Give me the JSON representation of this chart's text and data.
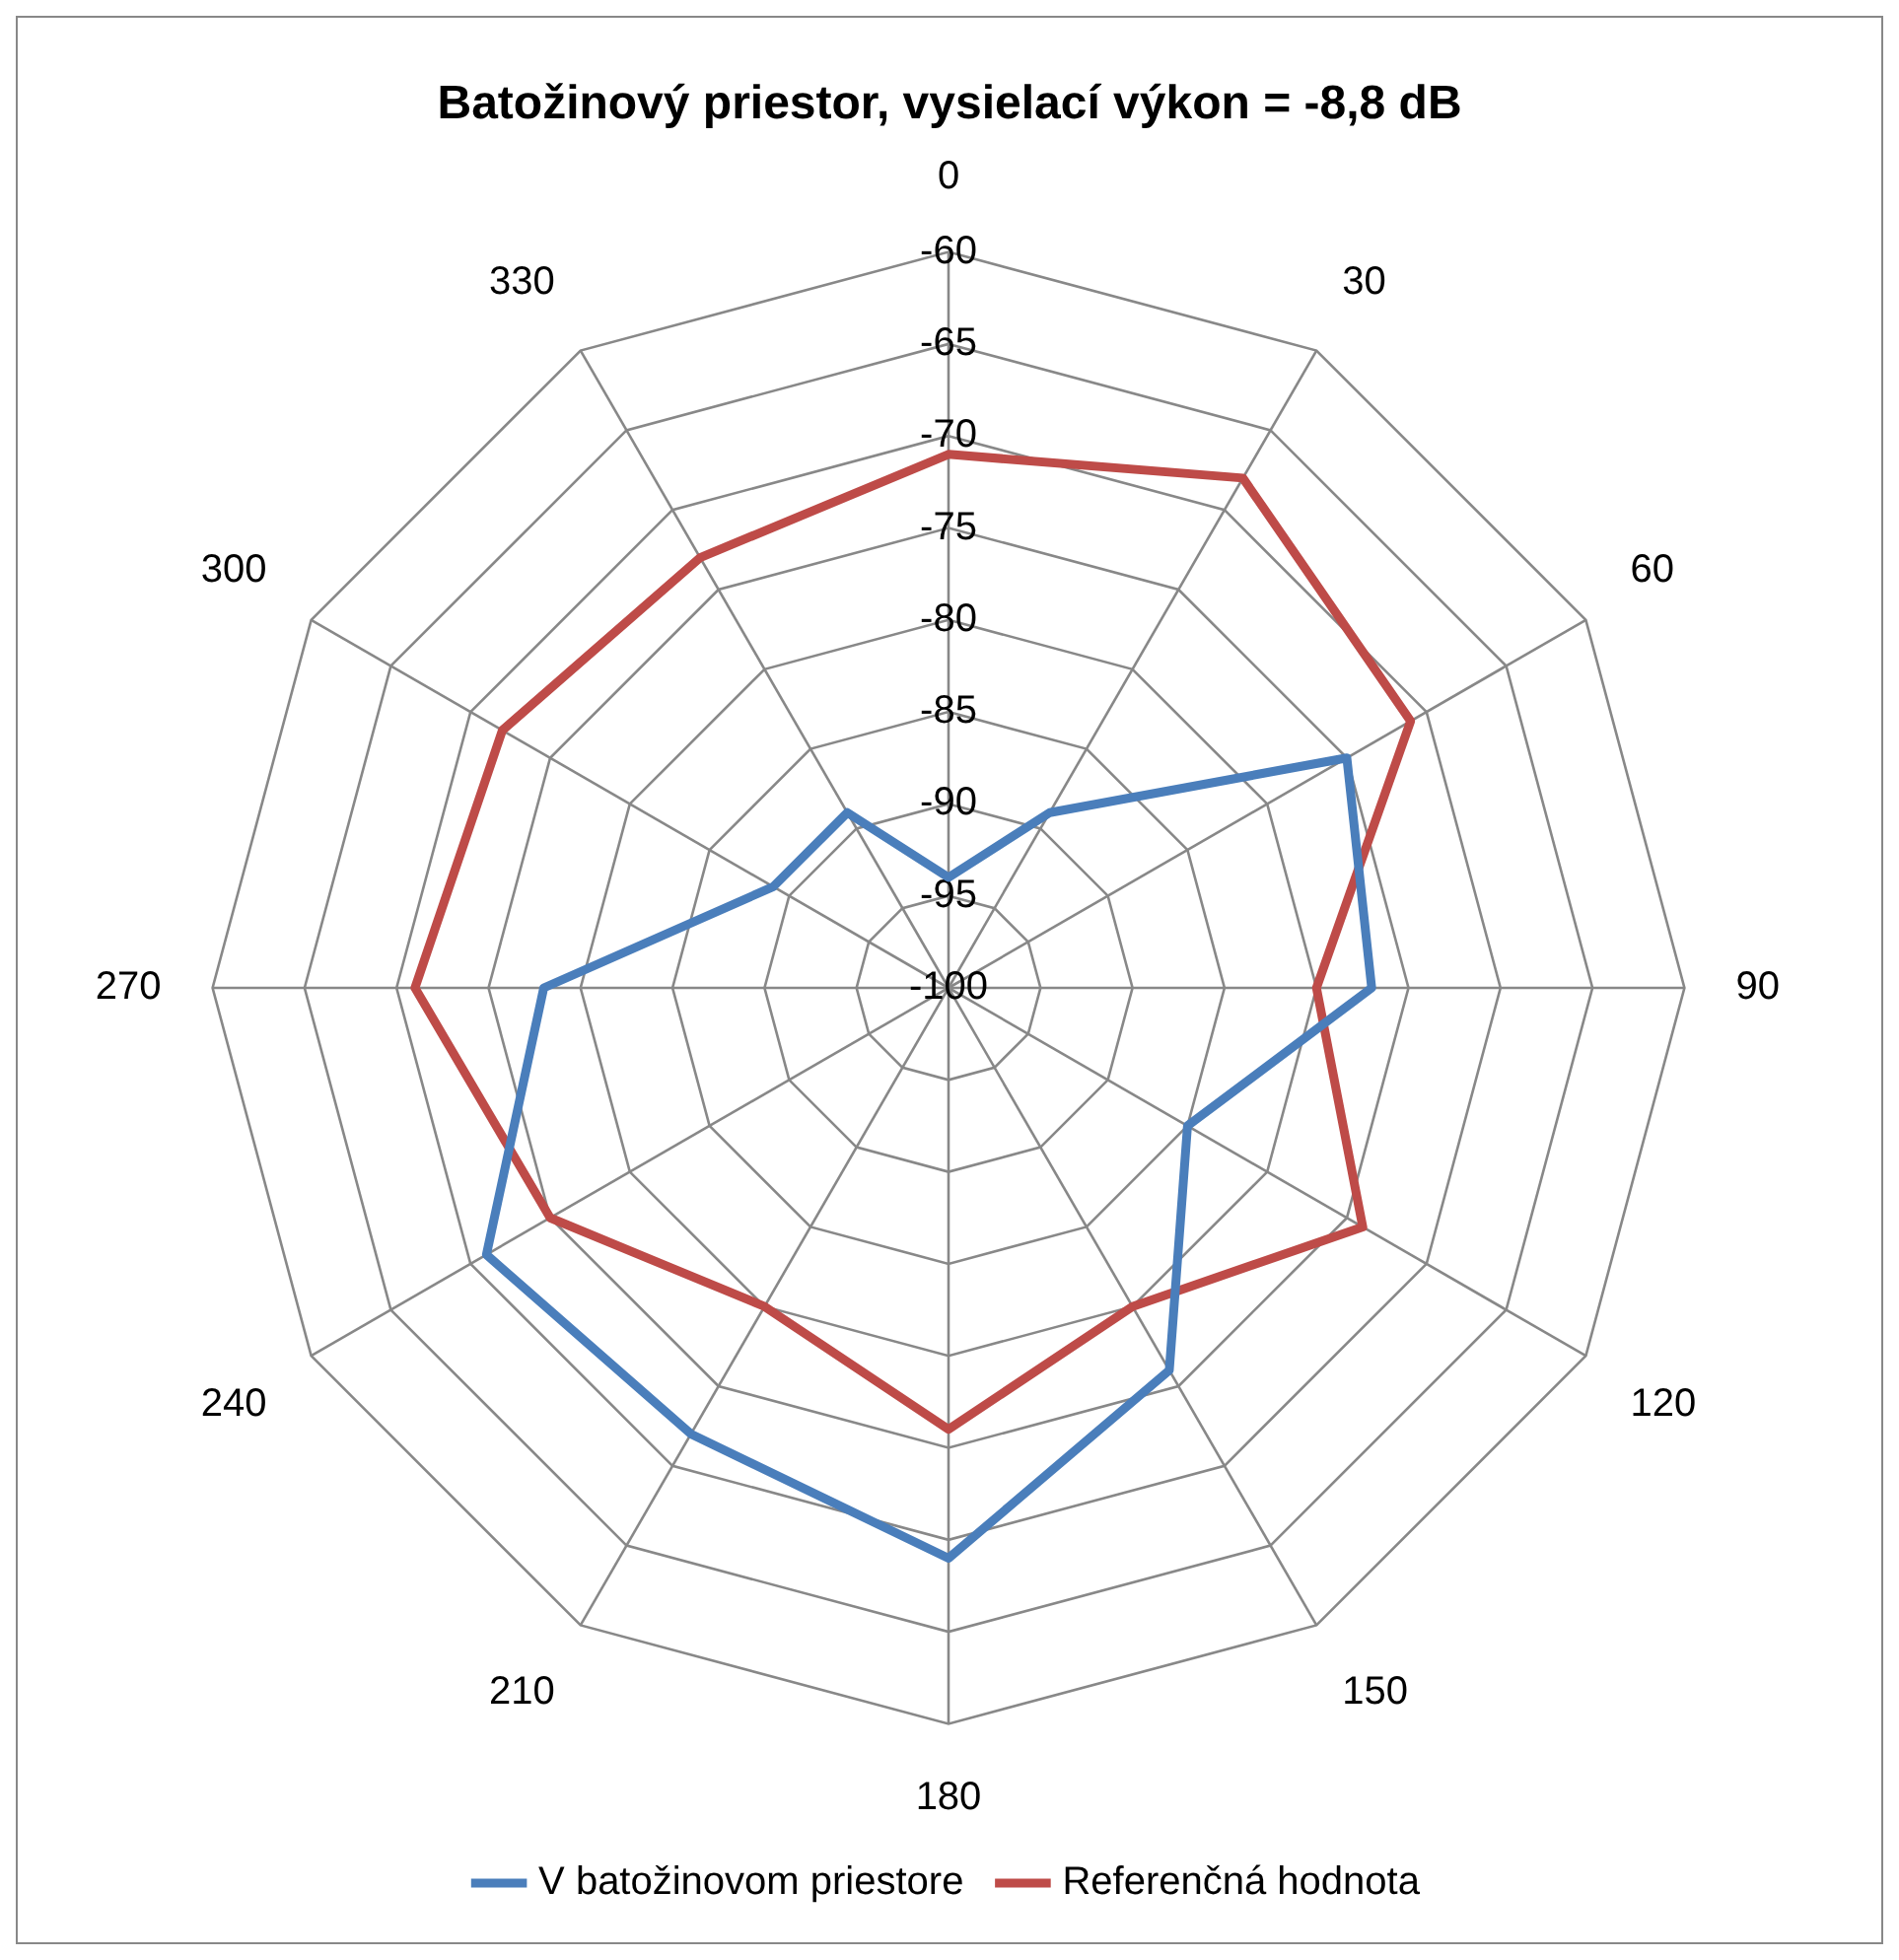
{
  "chart_data": {
    "type": "radar",
    "title": "Batožinový priestor, vysielací výkon = -8,8 dB",
    "categories": [
      "0",
      "30",
      "60",
      "90",
      "120",
      "150",
      "180",
      "210",
      "240",
      "270",
      "300",
      "330"
    ],
    "series": [
      {
        "name": "V batožinovom priestore",
        "color": "#4a7ebb",
        "values": [
          -94,
          -89,
          -75,
          -77,
          -85,
          -76,
          -69,
          -72,
          -71,
          -78,
          -89,
          -89
        ]
      },
      {
        "name": "Referenčná hodnota",
        "color": "#be4b48",
        "values": [
          -71,
          -68,
          -71,
          -80,
          -74,
          -80,
          -76,
          -80,
          -75,
          -71,
          -72,
          -73
        ]
      }
    ],
    "ylim": [
      -100,
      -60
    ],
    "yticks": [
      -100,
      -95,
      -90,
      -85,
      -80,
      -75,
      -70,
      -65,
      -60
    ],
    "grid": true,
    "legend": "bottom",
    "marker": "none",
    "line_style": "solid"
  }
}
